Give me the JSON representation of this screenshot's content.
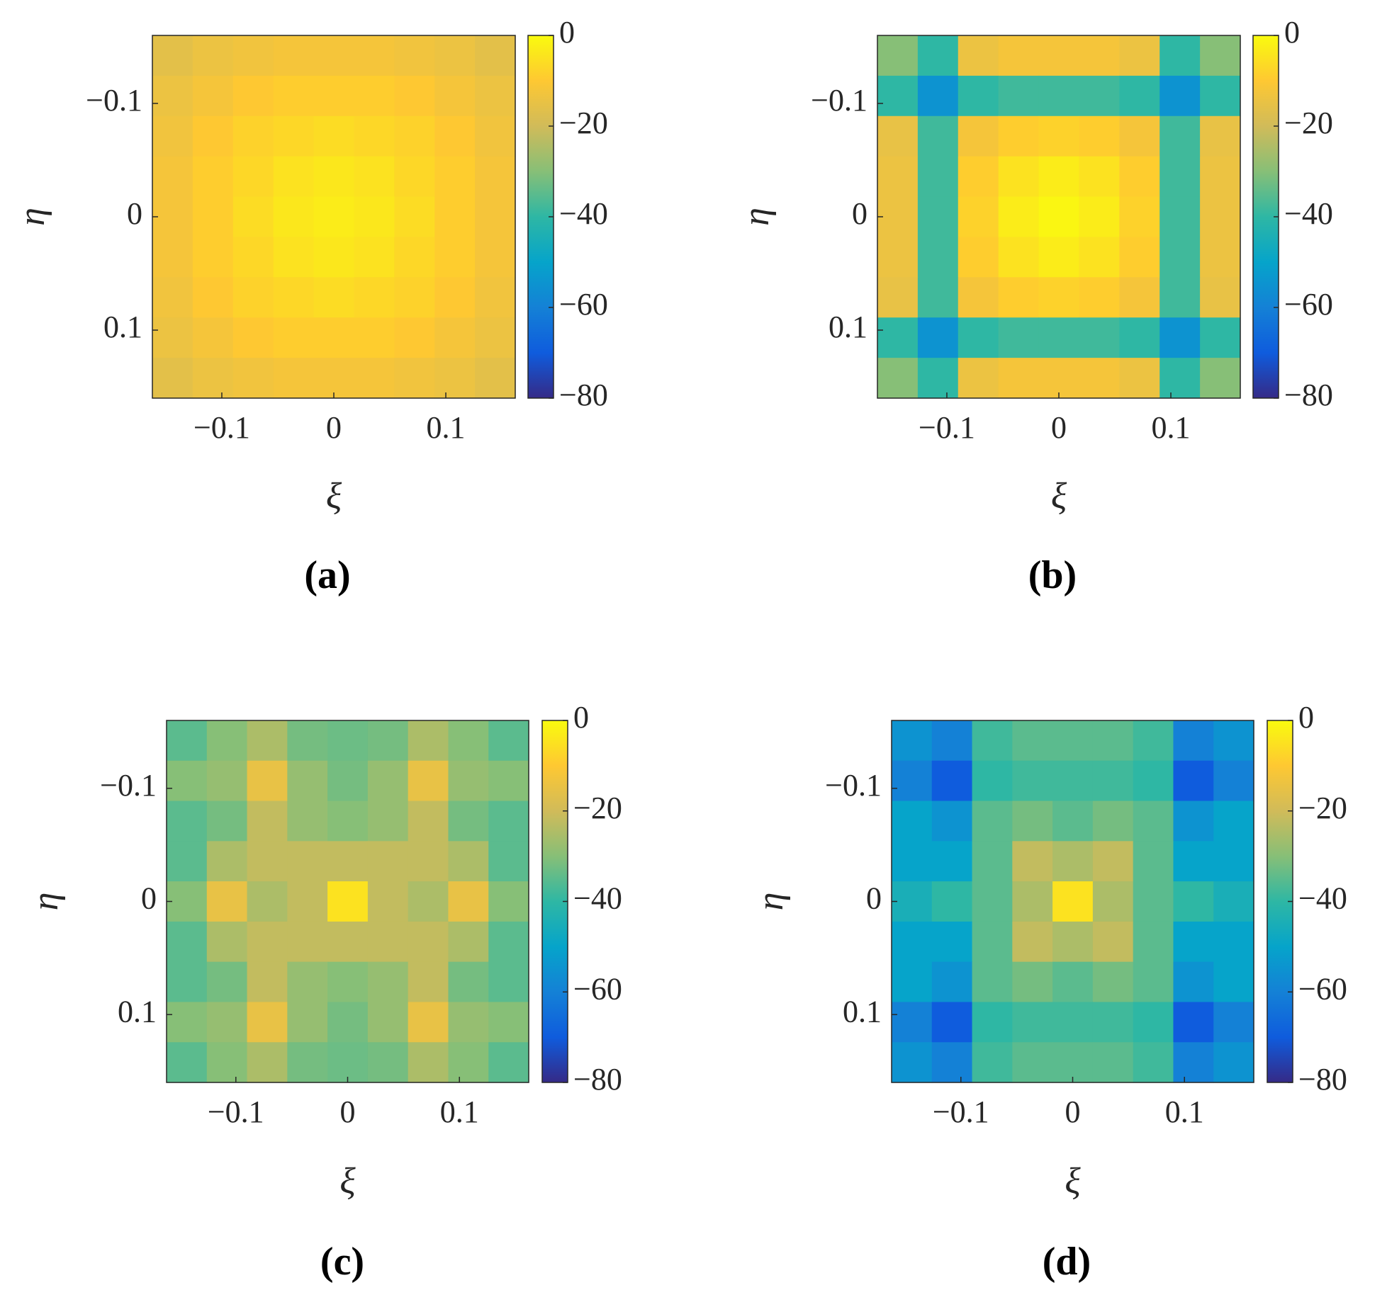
{
  "chart_data": [
    {
      "type": "heatmap",
      "panel_label": "(a)",
      "x_label": "ξ",
      "y_label": "η",
      "xlim": [
        -0.162,
        0.162
      ],
      "ylim": [
        -0.16,
        0.16
      ],
      "y_reversed": true,
      "xticks": [
        {
          "value": -0.1,
          "label": "−0.1"
        },
        0,
        0.1
      ],
      "yticks": [
        {
          "value": -0.1,
          "label": "−0.1"
        },
        0,
        0.1
      ],
      "colormap": "parula",
      "clim": [
        -80,
        0
      ],
      "cticks": [
        0,
        {
          "value": -20,
          "label": "−20"
        },
        {
          "value": -40,
          "label": "−40"
        },
        {
          "value": -60,
          "label": "−60"
        },
        {
          "value": -80,
          "label": "−80"
        }
      ],
      "values": [
        [
          -16,
          -14,
          -13,
          -12,
          -12,
          -12,
          -13,
          -14,
          -16
        ],
        [
          -14,
          -12,
          -10,
          -9,
          -9,
          -9,
          -10,
          -12,
          -14
        ],
        [
          -13,
          -10,
          -8,
          -7,
          -6,
          -7,
          -8,
          -10,
          -13
        ],
        [
          -12,
          -9,
          -7,
          -5,
          -4,
          -5,
          -7,
          -9,
          -12
        ],
        [
          -12,
          -9,
          -6,
          -4,
          -3,
          -4,
          -6,
          -9,
          -12
        ],
        [
          -12,
          -9,
          -7,
          -5,
          -4,
          -5,
          -7,
          -9,
          -12
        ],
        [
          -13,
          -10,
          -8,
          -7,
          -6,
          -7,
          -8,
          -10,
          -13
        ],
        [
          -14,
          -12,
          -10,
          -9,
          -9,
          -9,
          -10,
          -12,
          -14
        ],
        [
          -16,
          -14,
          -13,
          -12,
          -12,
          -12,
          -13,
          -14,
          -16
        ]
      ]
    },
    {
      "type": "heatmap",
      "panel_label": "(b)",
      "x_label": "ξ",
      "y_label": "η",
      "xlim": [
        -0.162,
        0.162
      ],
      "ylim": [
        -0.16,
        0.16
      ],
      "y_reversed": true,
      "xticks": [
        {
          "value": -0.1,
          "label": "−0.1"
        },
        0,
        0.1
      ],
      "yticks": [
        {
          "value": -0.1,
          "label": "−0.1"
        },
        0,
        0.1
      ],
      "colormap": "parula",
      "clim": [
        -80,
        0
      ],
      "cticks": [
        0,
        {
          "value": -20,
          "label": "−20"
        },
        {
          "value": -40,
          "label": "−40"
        },
        {
          "value": -60,
          "label": "−60"
        },
        {
          "value": -80,
          "label": "−80"
        }
      ],
      "values": [
        [
          -30,
          -40,
          -14,
          -12,
          -12,
          -12,
          -14,
          -40,
          -30
        ],
        [
          -40,
          -55,
          -40,
          -38,
          -38,
          -38,
          -40,
          -55,
          -40
        ],
        [
          -15,
          -38,
          -12,
          -9,
          -8,
          -9,
          -12,
          -38,
          -15
        ],
        [
          -14,
          -38,
          -9,
          -5,
          -3,
          -5,
          -9,
          -38,
          -14
        ],
        [
          -14,
          -38,
          -8,
          -3,
          -1,
          -3,
          -8,
          -38,
          -14
        ],
        [
          -14,
          -38,
          -9,
          -5,
          -3,
          -5,
          -9,
          -38,
          -14
        ],
        [
          -15,
          -38,
          -12,
          -9,
          -8,
          -9,
          -12,
          -38,
          -15
        ],
        [
          -40,
          -55,
          -40,
          -38,
          -38,
          -38,
          -40,
          -55,
          -40
        ],
        [
          -30,
          -40,
          -14,
          -12,
          -12,
          -12,
          -14,
          -40,
          -30
        ]
      ]
    },
    {
      "type": "heatmap",
      "panel_label": "(c)",
      "x_label": "ξ",
      "y_label": "η",
      "xlim": [
        -0.162,
        0.162
      ],
      "ylim": [
        -0.16,
        0.16
      ],
      "y_reversed": true,
      "xticks": [
        {
          "value": -0.1,
          "label": "−0.1"
        },
        0,
        0.1
      ],
      "yticks": [
        {
          "value": -0.1,
          "label": "−0.1"
        },
        0,
        0.1
      ],
      "colormap": "parula",
      "clim": [
        -80,
        0
      ],
      "cticks": [
        0,
        {
          "value": -20,
          "label": "−20"
        },
        {
          "value": -40,
          "label": "−40"
        },
        {
          "value": -60,
          "label": "−60"
        },
        {
          "value": -80,
          "label": "−80"
        }
      ],
      "values": [
        [
          -35,
          -30,
          -25,
          -32,
          -33,
          -32,
          -25,
          -30,
          -35
        ],
        [
          -30,
          -28,
          -15,
          -28,
          -32,
          -28,
          -15,
          -28,
          -30
        ],
        [
          -35,
          -32,
          -22,
          -28,
          -30,
          -28,
          -22,
          -32,
          -35
        ],
        [
          -35,
          -25,
          -22,
          -22,
          -22,
          -22,
          -22,
          -25,
          -35
        ],
        [
          -30,
          -15,
          -25,
          -22,
          -5,
          -22,
          -25,
          -15,
          -30
        ],
        [
          -35,
          -25,
          -22,
          -22,
          -22,
          -22,
          -22,
          -25,
          -35
        ],
        [
          -35,
          -32,
          -22,
          -28,
          -30,
          -28,
          -22,
          -32,
          -35
        ],
        [
          -30,
          -28,
          -15,
          -28,
          -32,
          -28,
          -15,
          -28,
          -30
        ],
        [
          -35,
          -30,
          -25,
          -32,
          -33,
          -32,
          -25,
          -30,
          -35
        ]
      ]
    },
    {
      "type": "heatmap",
      "panel_label": "(d)",
      "x_label": "ξ",
      "y_label": "η",
      "xlim": [
        -0.162,
        0.162
      ],
      "ylim": [
        -0.16,
        0.16
      ],
      "y_reversed": true,
      "xticks": [
        {
          "value": -0.1,
          "label": "−0.1"
        },
        0,
        0.1
      ],
      "yticks": [
        {
          "value": -0.1,
          "label": "−0.1"
        },
        0,
        0.1
      ],
      "colormap": "parula",
      "clim": [
        -80,
        0
      ],
      "cticks": [
        0,
        {
          "value": -20,
          "label": "−20"
        },
        {
          "value": -40,
          "label": "−40"
        },
        {
          "value": -60,
          "label": "−60"
        },
        {
          "value": -80,
          "label": "−80"
        }
      ],
      "values": [
        [
          -55,
          -60,
          -38,
          -35,
          -35,
          -35,
          -38,
          -60,
          -55
        ],
        [
          -60,
          -70,
          -40,
          -38,
          -38,
          -38,
          -40,
          -70,
          -60
        ],
        [
          -50,
          -55,
          -35,
          -32,
          -35,
          -32,
          -35,
          -55,
          -50
        ],
        [
          -50,
          -50,
          -35,
          -22,
          -25,
          -22,
          -35,
          -50,
          -50
        ],
        [
          -45,
          -40,
          -35,
          -25,
          -5,
          -25,
          -35,
          -40,
          -45
        ],
        [
          -50,
          -50,
          -35,
          -22,
          -25,
          -22,
          -35,
          -50,
          -50
        ],
        [
          -50,
          -55,
          -35,
          -32,
          -35,
          -32,
          -35,
          -55,
          -50
        ],
        [
          -60,
          -70,
          -40,
          -38,
          -38,
          -38,
          -40,
          -70,
          -60
        ],
        [
          -55,
          -60,
          -38,
          -35,
          -35,
          -35,
          -38,
          -60,
          -55
        ]
      ]
    }
  ]
}
